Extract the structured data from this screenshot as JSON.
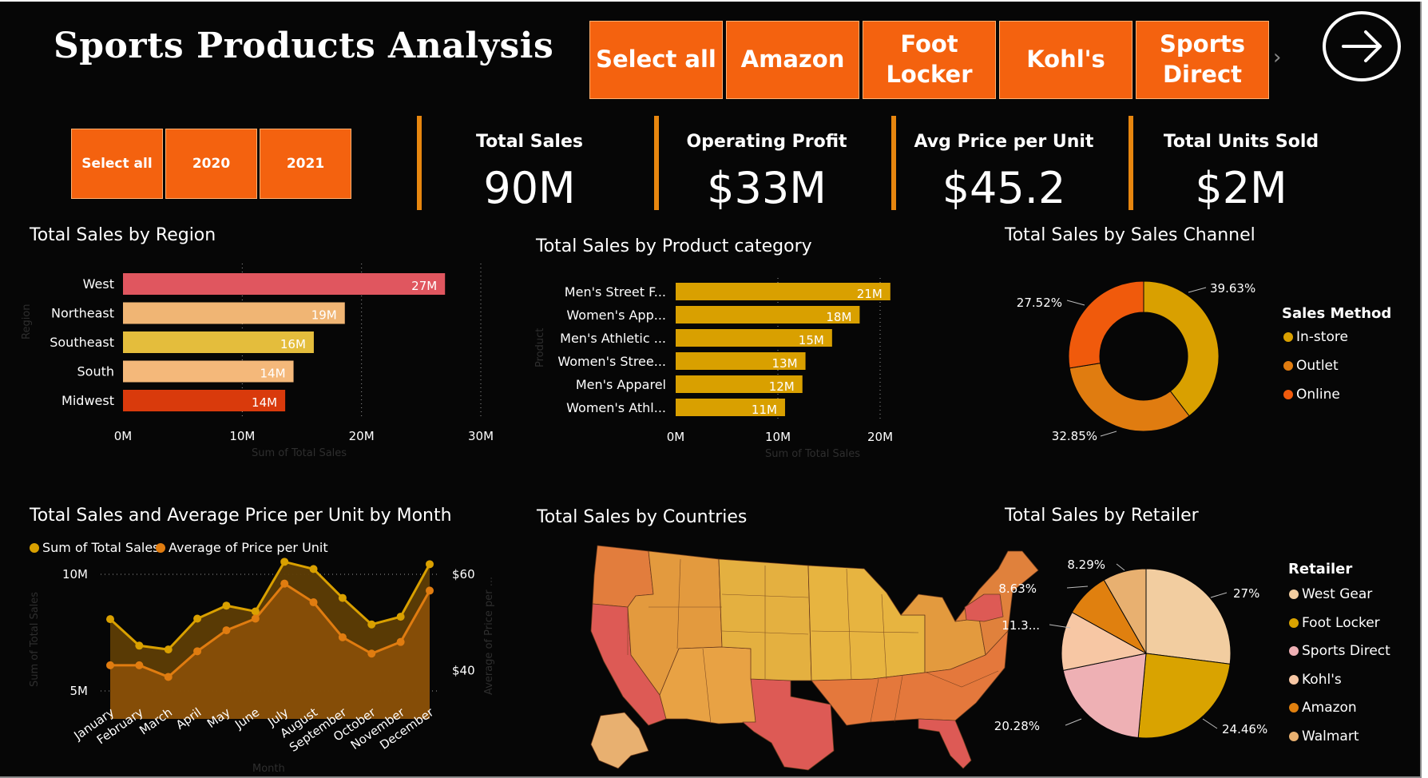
{
  "header": {
    "title": "Sports Products Analysis"
  },
  "retailer_slicer": {
    "buttons": [
      "Select all",
      "Amazon",
      "Foot Locker",
      "Kohl's",
      "Sports Direct"
    ]
  },
  "year_slicer": {
    "buttons": [
      "Select all",
      "2020",
      "2021"
    ]
  },
  "kpis": [
    {
      "label": "Total Sales",
      "value": "90M"
    },
    {
      "label": "Operating Profit",
      "value": "$33M"
    },
    {
      "label": "Avg Price per Unit",
      "value": "$45.2"
    },
    {
      "label": "Total Units Sold",
      "value": "$2M"
    }
  ],
  "colors": {
    "background": "#060606",
    "accent": "#f4620f",
    "kpi_divider": "#e7860f",
    "west": "#e0565f",
    "northeast": "#f0b574",
    "southeast": "#e4bd3c",
    "south": "#f4b87a",
    "midwest": "#d93a0c",
    "gold": "#d9a000",
    "orange": "#e07c10",
    "deep_orange": "#f05a0c",
    "west_gear": "#f2cda0",
    "foot_locker": "#d9a300",
    "sports_direct": "#eeb0b4",
    "kohls": "#f7c7a4",
    "amazon": "#e0800f",
    "walmart": "#e8b070"
  },
  "region_chart": {
    "title": "Total Sales by Region",
    "xlabel": "Sum of Total Sales",
    "ylabel": "Region",
    "ticks": [
      "0M",
      "10M",
      "20M",
      "30M"
    ]
  },
  "product_chart": {
    "title": "Total Sales by Product category",
    "xlabel": "Sum of Total Sales",
    "ylabel": "Product",
    "ticks": [
      "0M",
      "10M",
      "20M"
    ]
  },
  "channel_chart": {
    "title": "Total Sales by Sales Channel",
    "legend_title": "Sales Method",
    "slice_labels": [
      "39.63%",
      "32.85%",
      "27.52%"
    ]
  },
  "month_chart": {
    "title": "Total Sales and Average Price per Unit by Month",
    "legend": [
      "Sum of Total Sales",
      "Average of Price per Unit"
    ],
    "xlabel": "Month",
    "ylabel_left": "Sum of Total Sales",
    "ylabel_right": "Average of Price per ...",
    "left_ticks": [
      "10M",
      "5M"
    ],
    "right_ticks": [
      "$60",
      "$40"
    ]
  },
  "country_chart": {
    "title": "Total Sales by Countries"
  },
  "retailer_chart": {
    "title": "Total Sales by Retailer",
    "legend_title": "Retailer",
    "slice_labels": [
      "27%",
      "24.46%",
      "20.28%",
      "11.3...",
      "8.63%",
      "8.29%"
    ]
  },
  "chart_data": [
    {
      "type": "bar",
      "title": "Total Sales by Region",
      "xlabel": "Sum of Total Sales",
      "ylabel": "Region",
      "categories": [
        "West",
        "Northeast",
        "Southeast",
        "South",
        "Midwest"
      ],
      "values": [
        27,
        18.6,
        16,
        14.3,
        13.6
      ],
      "data_labels": [
        "27M",
        "19M",
        "16M",
        "14M",
        "14M"
      ],
      "unit": "M",
      "xlim": [
        0,
        30
      ],
      "grid": true
    },
    {
      "type": "bar",
      "title": "Total Sales by Product category",
      "xlabel": "Sum of Total Sales",
      "ylabel": "Product",
      "categories": [
        "Men's Street F...",
        "Women's App...",
        "Men's Athletic ...",
        "Women's Stree...",
        "Men's Apparel",
        "Women's Athl..."
      ],
      "values": [
        21,
        18,
        15.3,
        12.7,
        12.4,
        10.7
      ],
      "data_labels": [
        "21M",
        "18M",
        "15M",
        "13M",
        "12M",
        "11M"
      ],
      "unit": "M",
      "xlim": [
        0,
        20.5
      ],
      "grid": true
    },
    {
      "type": "pie",
      "title": "Total Sales by Sales Channel",
      "donut": true,
      "categories": [
        "In-store",
        "Outlet",
        "Online"
      ],
      "values": [
        39.63,
        32.85,
        27.52
      ],
      "legend_title": "Sales Method",
      "legend_position": "right"
    },
    {
      "type": "area",
      "title": "Total Sales and Average Price per Unit by Month",
      "xlabel": "Month",
      "categories": [
        "January",
        "February",
        "March",
        "April",
        "May",
        "June",
        "July",
        "August",
        "September",
        "October",
        "November",
        "December"
      ],
      "series": [
        {
          "name": "Sum of Total Sales",
          "axis": "left",
          "values": [
            6.1,
            6.1,
            5.6,
            6.7,
            7.6,
            8.1,
            9.6,
            8.8,
            7.3,
            6.6,
            7.1,
            9.3
          ]
        },
        {
          "name": "Average of Price per Unit",
          "axis": "right",
          "values": [
            50.7,
            45.2,
            44.4,
            50.8,
            53.5,
            52.3,
            62.6,
            61.1,
            55.1,
            49.6,
            51.2,
            62.1
          ]
        }
      ],
      "ylim_left": [
        3.8,
        10
      ],
      "ylim_right": [
        30,
        60
      ],
      "legend_position": "top-left"
    },
    {
      "type": "pie",
      "title": "Total Sales by Retailer",
      "categories": [
        "West Gear",
        "Foot Locker",
        "Sports Direct",
        "Kohl's",
        "Amazon",
        "Walmart"
      ],
      "values": [
        27,
        24.46,
        20.28,
        11.3,
        8.63,
        8.29
      ],
      "legend_title": "Retailer",
      "legend_position": "right"
    }
  ]
}
